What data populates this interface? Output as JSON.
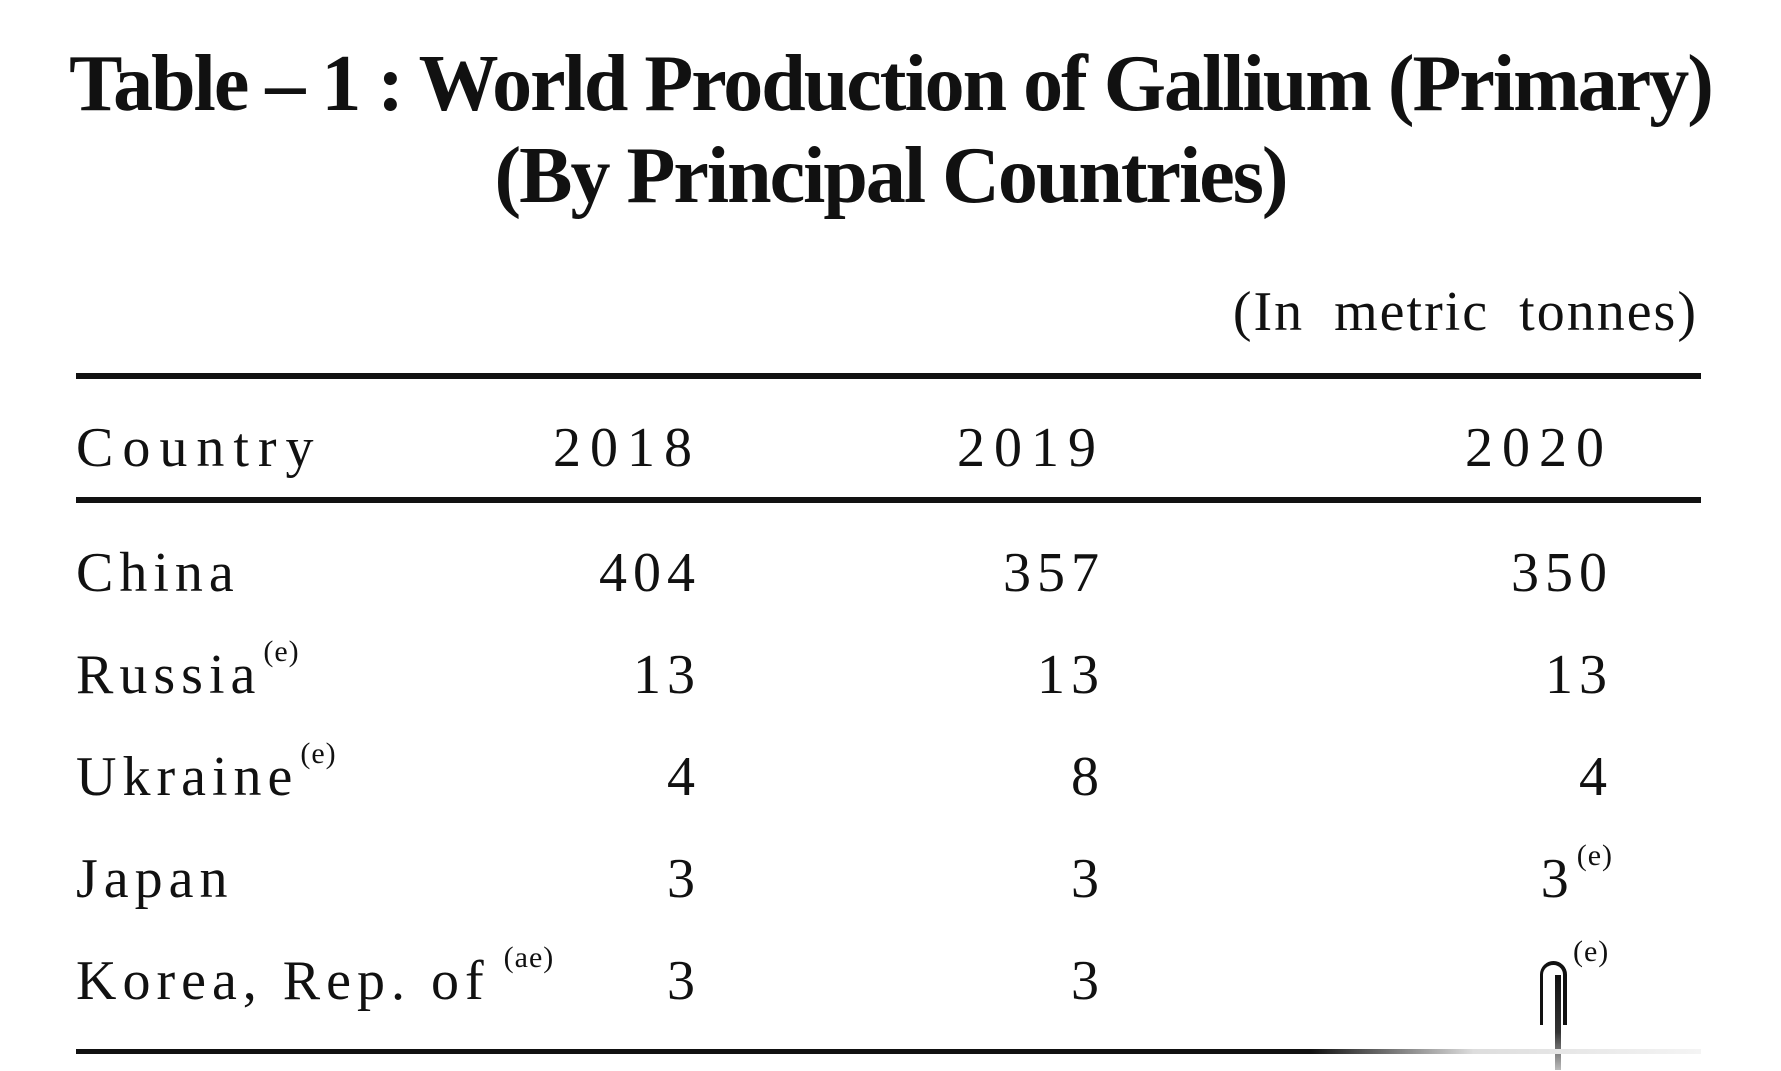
{
  "title": {
    "line1": "Table – 1 : World Production of Gallium (Primary)",
    "line2": "(By Principal Countries)"
  },
  "unit_note": "(In metric tonnes)",
  "table": {
    "headers": [
      "Country",
      "2018",
      "2019",
      "2020"
    ],
    "rows": [
      {
        "country": "China",
        "country_note": "",
        "v2018": "404",
        "v2018_note": "",
        "v2019": "357",
        "v2019_note": "",
        "v2020": "350",
        "v2020_note": ""
      },
      {
        "country": "Russia",
        "country_note": "(e)",
        "v2018": "13",
        "v2018_note": "",
        "v2019": "13",
        "v2019_note": "",
        "v2020": "13",
        "v2020_note": ""
      },
      {
        "country": "Ukraine",
        "country_note": "(e)",
        "v2018": "4",
        "v2018_note": "",
        "v2019": "8",
        "v2019_note": "",
        "v2020": "4",
        "v2020_note": ""
      },
      {
        "country": "Japan",
        "country_note": "",
        "v2018": "3",
        "v2018_note": "",
        "v2019": "3",
        "v2019_note": "",
        "v2020": "3",
        "v2020_note": "(e)"
      },
      {
        "country": "Korea, Rep. of",
        "country_note": "(ae)",
        "v2018": "3",
        "v2018_note": "",
        "v2019": "3",
        "v2019_note": "",
        "v2020": "",
        "v2020_note": "(e)"
      }
    ]
  }
}
